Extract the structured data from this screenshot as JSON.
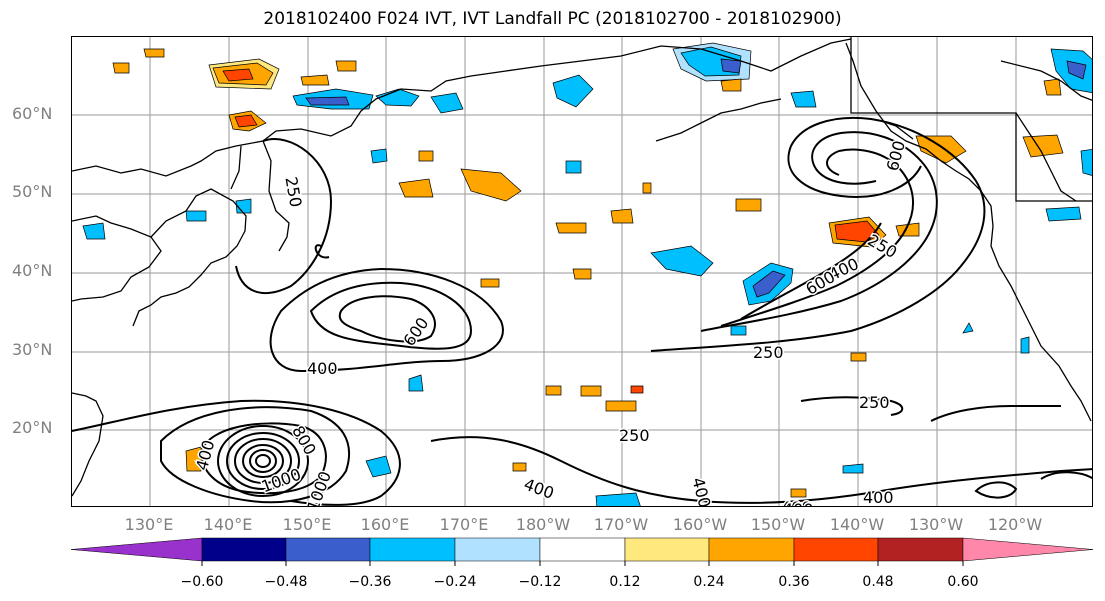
{
  "title": "2018102400 F024 IVT, IVT Landfall PC (2018102700 - 2018102900)",
  "latitude_labels": [
    "60°N",
    "50°N",
    "40°N",
    "30°N",
    "20°N"
  ],
  "longitude_labels": [
    "130°E",
    "140°E",
    "150°E",
    "160°E",
    "170°E",
    "180°W",
    "170°W",
    "160°W",
    "150°W",
    "140°W",
    "130°W",
    "120°W"
  ],
  "contour_labels": [
    "250",
    "250",
    "250",
    "250",
    "400",
    "400",
    "400",
    "400",
    "400",
    "600",
    "600",
    "1000",
    "800",
    "1000",
    "400",
    "250",
    "400",
    "600",
    "400"
  ],
  "colorbar": {
    "ticks": [
      "−0.60",
      "−0.48",
      "−0.36",
      "−0.24",
      "−0.12",
      "0.12",
      "0.24",
      "0.36",
      "0.48",
      "0.60"
    ],
    "colors": [
      "#9932cc",
      "#00008b",
      "#3a5fcd",
      "#00bfff",
      "#b0e2ff",
      "#ffffff",
      "#ffe97f",
      "#ffa500",
      "#ff4500",
      "#b22222",
      "#ff88aa"
    ]
  }
}
